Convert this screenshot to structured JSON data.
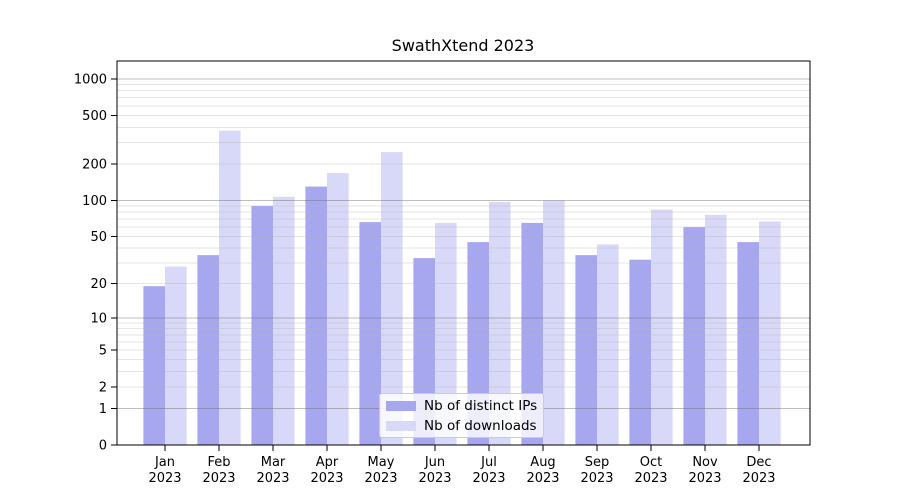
{
  "chart_data": {
    "type": "bar",
    "title": "SwathXtend 2023",
    "xlabel": "",
    "ylabel": "",
    "categories": [
      "Jan",
      "Feb",
      "Mar",
      "Apr",
      "May",
      "Jun",
      "Jul",
      "Aug",
      "Sep",
      "Oct",
      "Nov",
      "Dec"
    ],
    "category_year": "2023",
    "series": [
      {
        "name": "Nb of distinct IPs",
        "color": "#a7a7f0",
        "values": [
          19,
          35,
          90,
          130,
          66,
          33,
          45,
          65,
          35,
          32,
          60,
          45
        ]
      },
      {
        "name": "Nb of downloads",
        "color": "#d8d8f8",
        "values": [
          28,
          375,
          107,
          168,
          250,
          65,
          97,
          100,
          43,
          84,
          76,
          67
        ]
      }
    ],
    "yscale": "log1p",
    "ylim": [
      0,
      1400
    ],
    "yticks": [
      0,
      1,
      2,
      5,
      10,
      20,
      50,
      100,
      200,
      500,
      1000
    ],
    "major_grid_values": [
      1,
      10,
      100,
      1000
    ],
    "minor_grid_values": [
      2,
      3,
      4,
      5,
      6,
      7,
      8,
      9,
      20,
      30,
      40,
      50,
      60,
      70,
      80,
      90,
      200,
      300,
      400,
      500,
      600,
      700,
      800,
      900
    ],
    "grid": "horizontal, drawn over bars",
    "legend_position": "lower center",
    "colors": {
      "background": "#ffffff",
      "axis": "#000000",
      "major_grid": "rgba(110,110,110,0.45)",
      "minor_grid": "rgba(180,180,180,0.35)"
    }
  }
}
